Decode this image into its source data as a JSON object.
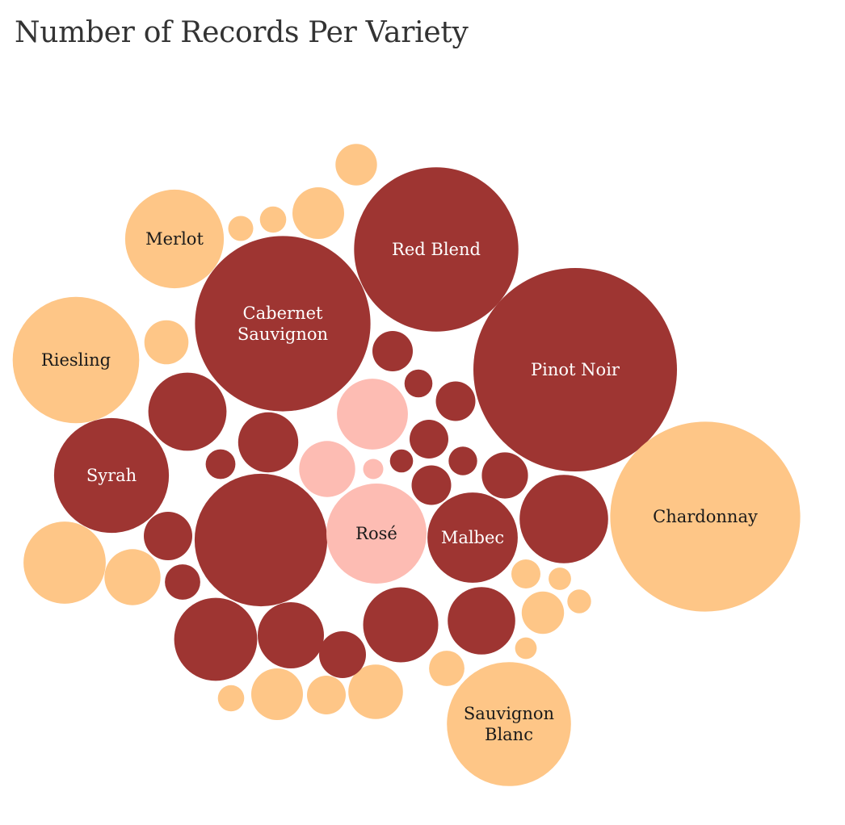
{
  "page": {
    "title": "Number of Records Per Variety"
  },
  "chart_data": {
    "type": "bubble",
    "title": "Number of Records Per Variety",
    "measure": "Number of Records",
    "colors": {
      "red": "#9e3532",
      "white": "#fec687",
      "rose": "#fdbcb3"
    },
    "bubbles": [
      {
        "label": [
          "Pinot Noir"
        ],
        "color": "red",
        "value": 13200
      },
      {
        "label": [
          "Chardonnay"
        ],
        "color": "white",
        "value": 11500
      },
      {
        "label": [
          "Cabernet",
          "Sauvignon"
        ],
        "color": "red",
        "value": 9800
      },
      {
        "label": [
          "Red Blend"
        ],
        "color": "red",
        "value": 8600
      },
      {
        "label": [],
        "color": "red",
        "value": 5600
      },
      {
        "label": [
          "Riesling"
        ],
        "color": "white",
        "value": 5100
      },
      {
        "label": [
          "Sauvignon",
          "Blanc"
        ],
        "color": "white",
        "value": 4900
      },
      {
        "label": [
          "Syrah"
        ],
        "color": "red",
        "value": 4200
      },
      {
        "label": [
          "Rosé"
        ],
        "color": "rose",
        "value": 3200
      },
      {
        "label": [
          "Merlot"
        ],
        "color": "white",
        "value": 3100
      },
      {
        "label": [
          "Malbec"
        ],
        "color": "red",
        "value": 2600
      },
      {
        "label": [],
        "color": "red",
        "value": 2500
      },
      {
        "label": [],
        "color": "red",
        "value": 2200
      },
      {
        "label": [],
        "color": "white",
        "value": 2150
      },
      {
        "label": [],
        "color": "red",
        "value": 1950
      },
      {
        "label": [],
        "color": "red",
        "value": 1800
      },
      {
        "label": [],
        "color": "rose",
        "value": 1600
      },
      {
        "label": [],
        "color": "red",
        "value": 1450
      },
      {
        "label": [],
        "color": "red",
        "value": 1400
      },
      {
        "label": [],
        "color": "red",
        "value": 1150
      },
      {
        "label": [],
        "color": "white",
        "value": 1000
      },
      {
        "label": [],
        "color": "rose",
        "value": 1000
      },
      {
        "label": [],
        "color": "white",
        "value": 950
      },
      {
        "label": [],
        "color": "white",
        "value": 850
      },
      {
        "label": [],
        "color": "white",
        "value": 850
      },
      {
        "label": [],
        "color": "red",
        "value": 750
      },
      {
        "label": [],
        "color": "red",
        "value": 700
      },
      {
        "label": [],
        "color": "red",
        "value": 680
      },
      {
        "label": [],
        "color": "white",
        "value": 620
      },
      {
        "label": [],
        "color": "white",
        "value": 570
      },
      {
        "label": [],
        "color": "white",
        "value": 550
      },
      {
        "label": [],
        "color": "red",
        "value": 520
      },
      {
        "label": [],
        "color": "red",
        "value": 500
      },
      {
        "label": [],
        "color": "red",
        "value": 500
      },
      {
        "label": [],
        "color": "red",
        "value": 480
      },
      {
        "label": [],
        "color": "white",
        "value": 480
      },
      {
        "label": [],
        "color": "red",
        "value": 400
      },
      {
        "label": [],
        "color": "white",
        "value": 400
      },
      {
        "label": [],
        "color": "red",
        "value": 280
      },
      {
        "label": [],
        "color": "white",
        "value": 270
      },
      {
        "label": [],
        "color": "red",
        "value": 260
      },
      {
        "label": [],
        "color": "red",
        "value": 250
      },
      {
        "label": [],
        "color": "white",
        "value": 220
      },
      {
        "label": [],
        "color": "white",
        "value": 220
      },
      {
        "label": [],
        "color": "white",
        "value": 200
      },
      {
        "label": [],
        "color": "white",
        "value": 180
      },
      {
        "label": [],
        "color": "red",
        "value": 170
      },
      {
        "label": [],
        "color": "white",
        "value": 160
      },
      {
        "label": [],
        "color": "white",
        "value": 150
      },
      {
        "label": [],
        "color": "rose",
        "value": 130
      }
    ]
  }
}
